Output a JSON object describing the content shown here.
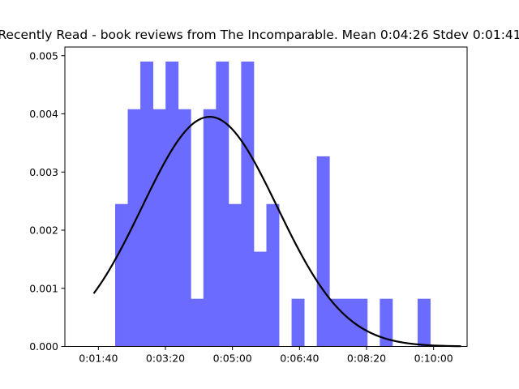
{
  "chart_data": {
    "type": "bar",
    "title": "Recently Read - book reviews from The Incomparable. Mean 0:04:26 Stdev 0:01:41",
    "xlabel": "",
    "ylabel": "",
    "x_unit": "seconds",
    "xlim": [
      50,
      650
    ],
    "ylim": [
      0,
      0.00515
    ],
    "x_ticks": [
      {
        "value": 100,
        "label": "0:01:40"
      },
      {
        "value": 200,
        "label": "0:03:20"
      },
      {
        "value": 300,
        "label": "0:05:00"
      },
      {
        "value": 400,
        "label": "0:06:40"
      },
      {
        "value": 500,
        "label": "0:08:20"
      },
      {
        "value": 600,
        "label": "0:10:00"
      }
    ],
    "y_ticks": [
      {
        "value": 0,
        "label": "0.000"
      },
      {
        "value": 0.001,
        "label": "0.001"
      },
      {
        "value": 0.002,
        "label": "0.002"
      },
      {
        "value": 0.003,
        "label": "0.003"
      },
      {
        "value": 0.004,
        "label": "0.004"
      },
      {
        "value": 0.005,
        "label": "0.005"
      }
    ],
    "histogram": {
      "bin_start": 125,
      "bin_width": 18.8,
      "color": "#6b6bff",
      "values": [
        0.00245,
        0.00408,
        0.0049,
        0.00408,
        0.0049,
        0.00408,
        0.00082,
        0.00408,
        0.0049,
        0.00245,
        0.0049,
        0.00163,
        0.00245,
        0,
        0.00082,
        0,
        0.00327,
        0.00082,
        0.00082,
        0.00082,
        0,
        0.00082,
        0,
        0,
        0.00082
      ]
    },
    "normal_curve": {
      "mean": 266,
      "stdev": 101,
      "x_range": [
        93,
        641
      ],
      "color": "#000000"
    },
    "grid": false,
    "legend": "none"
  }
}
